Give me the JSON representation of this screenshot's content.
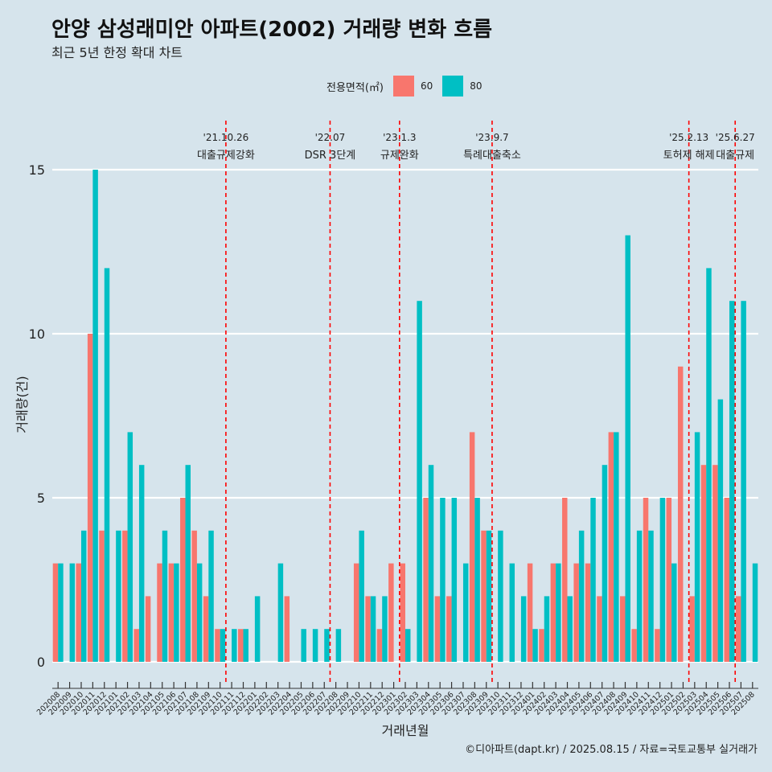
{
  "title": "안양 삼성래미안 아파트(2002) 거래량 변화 흐름",
  "subtitle": "최근 5년 한정 확대 차트",
  "caption": "©디아파트(dapt.kr) / 2025.08.15 / 자료=국토교통부 실거래가",
  "legend": {
    "title": "전용면적(㎡)",
    "items": [
      {
        "label": "60",
        "color": "#f8766d"
      },
      {
        "label": "80",
        "color": "#00bfc4"
      }
    ]
  },
  "chart_data": {
    "type": "bar",
    "title": "안양 삼성래미안 아파트(2002) 거래량 변화 흐름",
    "xlabel": "거래년월",
    "ylabel": "거래량(건)",
    "ylim": [
      0,
      15
    ],
    "yticks": [
      0,
      5,
      10,
      15
    ],
    "categories": [
      "202008",
      "202009",
      "202010",
      "202011",
      "202012",
      "202101",
      "202102",
      "202103",
      "202104",
      "202105",
      "202106",
      "202107",
      "202108",
      "202109",
      "202110",
      "202111",
      "202112",
      "202201",
      "202202",
      "202203",
      "202204",
      "202205",
      "202206",
      "202207",
      "202208",
      "202209",
      "202210",
      "202211",
      "202212",
      "202301",
      "202302",
      "202303",
      "202304",
      "202305",
      "202306",
      "202307",
      "202308",
      "202309",
      "202310",
      "202311",
      "202312",
      "202401",
      "202402",
      "202403",
      "202404",
      "202405",
      "202406",
      "202407",
      "202408",
      "202409",
      "202410",
      "202411",
      "202412",
      "202501",
      "202502",
      "202503",
      "202504",
      "202505",
      "202506",
      "202507",
      "202508"
    ],
    "series": [
      {
        "name": "60",
        "color": "#f8766d",
        "values": [
          3,
          0,
          3,
          10,
          4,
          0,
          4,
          1,
          2,
          3,
          3,
          5,
          4,
          2,
          1,
          0,
          1,
          0,
          0,
          0,
          2,
          0,
          0,
          0,
          0,
          0,
          3,
          2,
          1,
          3,
          3,
          0,
          5,
          2,
          2,
          0,
          7,
          4,
          0,
          0,
          0,
          3,
          1,
          3,
          5,
          3,
          3,
          2,
          7,
          2,
          1,
          5,
          1,
          5,
          9,
          2,
          6,
          6,
          5,
          2,
          0
        ]
      },
      {
        "name": "80",
        "color": "#00bfc4",
        "values": [
          3,
          3,
          4,
          15,
          12,
          4,
          7,
          6,
          0,
          4,
          3,
          6,
          3,
          4,
          1,
          1,
          1,
          2,
          0,
          3,
          0,
          1,
          1,
          1,
          1,
          0,
          4,
          2,
          2,
          0,
          1,
          11,
          6,
          5,
          5,
          3,
          5,
          4,
          4,
          3,
          2,
          1,
          2,
          3,
          2,
          4,
          5,
          6,
          7,
          13,
          4,
          4,
          5,
          3,
          0,
          7,
          12,
          8,
          11,
          11,
          3
        ]
      }
    ],
    "events": [
      {
        "after": "202110",
        "date": "'21.10.26",
        "label": "대출규제강화"
      },
      {
        "after": "202207",
        "date": "'22.07",
        "label": "DSR 3단계"
      },
      {
        "after": "202301",
        "date": "'23.1.3",
        "label": "규제완화"
      },
      {
        "after": "202309",
        "date": "'23.9.7",
        "label": "특례대출축소"
      },
      {
        "after": "202502",
        "date": "'25.2.13",
        "label": "토허제 해제"
      },
      {
        "after": "202506",
        "date": "'25.6.27",
        "label": "대출규제"
      }
    ]
  }
}
